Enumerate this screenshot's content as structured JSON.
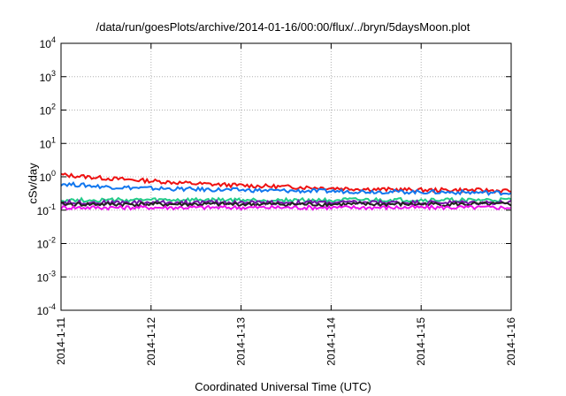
{
  "chart_data": {
    "type": "line",
    "title": "/data/run/goesPlots/archive/2014-01-16/00:00/flux/../bryn/5daysMoon.plot",
    "xlabel": "Coordinated Universal Time (UTC)",
    "ylabel": "cSv/day",
    "yscale": "log",
    "ylim": [
      0.0001,
      10000
    ],
    "y_ticks": [
      {
        "base": "10",
        "exp": "-4",
        "value": 0.0001
      },
      {
        "base": "10",
        "exp": "-3",
        "value": 0.001
      },
      {
        "base": "10",
        "exp": "-2",
        "value": 0.01
      },
      {
        "base": "10",
        "exp": "-1",
        "value": 0.1
      },
      {
        "base": "10",
        "exp": "0",
        "value": 1
      },
      {
        "base": "10",
        "exp": "1",
        "value": 10
      },
      {
        "base": "10",
        "exp": "2",
        "value": 100
      },
      {
        "base": "10",
        "exp": "3",
        "value": 1000
      },
      {
        "base": "10",
        "exp": "4",
        "value": 10000
      }
    ],
    "x_ticks": [
      "2014-1-11",
      "2014-1-12",
      "2014-1-13",
      "2014-1-14",
      "2014-1-15",
      "2014-1-16"
    ],
    "xlim": [
      "2014-01-11",
      "2014-01-16"
    ],
    "grid": true,
    "series": [
      {
        "color": "#ee1111",
        "x": [
          "2014-01-11",
          "2014-01-11.5",
          "2014-01-12",
          "2014-01-12.5",
          "2014-01-13",
          "2014-01-13.5",
          "2014-01-14",
          "2014-01-14.5",
          "2014-01-15",
          "2014-01-15.5",
          "2014-01-16"
        ],
        "values": [
          1.15,
          0.9,
          0.75,
          0.62,
          0.55,
          0.5,
          0.46,
          0.42,
          0.4,
          0.4,
          0.38
        ]
      },
      {
        "color": "#1177ee",
        "x": [
          "2014-01-11",
          "2014-01-11.5",
          "2014-01-12",
          "2014-01-12.5",
          "2014-01-13",
          "2014-01-13.5",
          "2014-01-14",
          "2014-01-14.5",
          "2014-01-15",
          "2014-01-15.5",
          "2014-01-16"
        ],
        "values": [
          0.62,
          0.5,
          0.45,
          0.42,
          0.4,
          0.38,
          0.37,
          0.36,
          0.35,
          0.34,
          0.33
        ]
      },
      {
        "color": "#22cc88",
        "x": [
          "2014-01-11",
          "2014-01-11.5",
          "2014-01-12",
          "2014-01-12.5",
          "2014-01-13",
          "2014-01-13.5",
          "2014-01-14",
          "2014-01-14.5",
          "2014-01-15",
          "2014-01-15.5",
          "2014-01-16"
        ],
        "values": [
          0.2,
          0.2,
          0.2,
          0.2,
          0.2,
          0.2,
          0.2,
          0.2,
          0.2,
          0.2,
          0.2
        ]
      },
      {
        "color": "#7711aa",
        "x": [
          "2014-01-11",
          "2014-01-11.5",
          "2014-01-12",
          "2014-01-12.5",
          "2014-01-13",
          "2014-01-13.5",
          "2014-01-14",
          "2014-01-14.5",
          "2014-01-15",
          "2014-01-15.5",
          "2014-01-16"
        ],
        "values": [
          0.17,
          0.17,
          0.17,
          0.17,
          0.17,
          0.17,
          0.17,
          0.17,
          0.17,
          0.17,
          0.17
        ]
      },
      {
        "color": "#222222",
        "x": [
          "2014-01-11",
          "2014-01-11.5",
          "2014-01-12",
          "2014-01-12.5",
          "2014-01-13",
          "2014-01-13.5",
          "2014-01-14",
          "2014-01-14.5",
          "2014-01-15",
          "2014-01-15.5",
          "2014-01-16"
        ],
        "values": [
          0.15,
          0.15,
          0.15,
          0.15,
          0.15,
          0.15,
          0.15,
          0.15,
          0.15,
          0.15,
          0.15
        ]
      },
      {
        "color": "#ee11ee",
        "x": [
          "2014-01-11",
          "2014-01-11.5",
          "2014-01-12",
          "2014-01-12.5",
          "2014-01-13",
          "2014-01-13.5",
          "2014-01-14",
          "2014-01-14.5",
          "2014-01-15",
          "2014-01-15.5",
          "2014-01-16"
        ],
        "values": [
          0.12,
          0.12,
          0.12,
          0.12,
          0.12,
          0.12,
          0.12,
          0.12,
          0.12,
          0.12,
          0.12
        ]
      }
    ]
  }
}
